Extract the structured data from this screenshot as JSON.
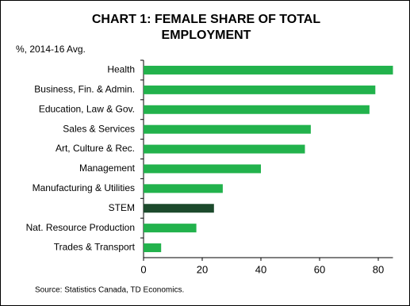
{
  "chart_data": {
    "type": "bar",
    "orientation": "horizontal",
    "title": [
      "CHART 1: FEMALE  SHARE OF TOTAL",
      "EMPLOYMENT"
    ],
    "subtitle": "%, 2014-16 Avg.",
    "source": "Source: Statistics Canada, TD Economics.",
    "categories": [
      "Health",
      "Business, Fin. & Admin.",
      "Education, Law & Gov.",
      "Sales & Services",
      "Art, Culture & Rec.",
      "Management",
      "Manufacturing & Utilities",
      "STEM",
      "Nat. Resource Production",
      "Trades & Transport"
    ],
    "values": [
      85,
      79,
      77,
      57,
      55,
      40,
      27,
      24,
      18,
      6
    ],
    "colors": [
      "#22b24c",
      "#22b24c",
      "#22b24c",
      "#22b24c",
      "#22b24c",
      "#22b24c",
      "#22b24c",
      "#1c4a2c",
      "#22b24c",
      "#22b24c"
    ],
    "xlim": [
      0,
      85
    ],
    "xticks": [
      0,
      20,
      40,
      60,
      80
    ],
    "grid": false
  }
}
